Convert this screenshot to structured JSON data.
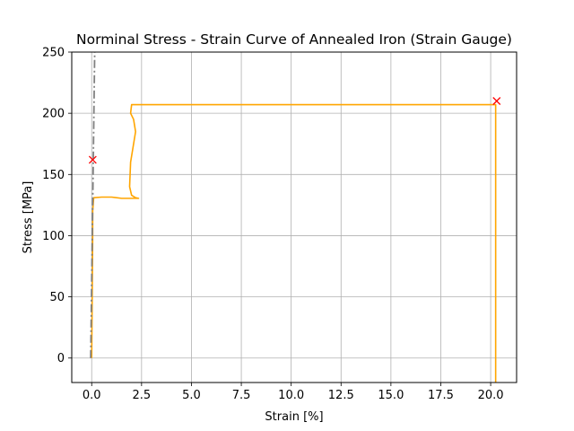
{
  "chart_data": {
    "type": "line",
    "title": "Norminal Stress - Strain Curve of Annealed Iron (Strain Gauge)",
    "xlabel": "Strain [%]",
    "ylabel": "Stress [MPa]",
    "xlim": [
      -1.0,
      21.3
    ],
    "ylim": [
      -20,
      250
    ],
    "xticks": [
      0,
      2.5,
      5,
      7.5,
      10,
      12.5,
      15,
      17.5,
      20
    ],
    "xtick_labels": [
      "0.0",
      "2.5",
      "5.0",
      "7.5",
      "10.0",
      "12.5",
      "15.0",
      "17.5",
      "20.0"
    ],
    "yticks": [
      0,
      50,
      100,
      150,
      200,
      250
    ],
    "ytick_labels": [
      "0",
      "50",
      "100",
      "150",
      "200",
      "250"
    ],
    "grid": true,
    "series": [
      {
        "color": "#ffa500",
        "style": "solid",
        "x": [
          0.0,
          0.01,
          0.02,
          0.03,
          0.04,
          0.05,
          0.05,
          0.1,
          0.5,
          1.0,
          1.5,
          2.0,
          2.35,
          2.2,
          2.0,
          1.9,
          1.95,
          2.1,
          2.2,
          2.1,
          1.95,
          2.0,
          2.5,
          5.0,
          10.0,
          15.0,
          20.0,
          20.25,
          20.25,
          20.25
        ],
        "y": [
          0,
          20,
          40,
          60,
          80,
          100,
          120,
          131,
          131.5,
          131.5,
          130.5,
          130.5,
          130.5,
          131,
          133,
          140,
          160,
          175,
          185,
          195,
          200,
          207,
          207,
          207,
          207,
          207,
          207,
          207,
          100,
          -20
        ]
      },
      {
        "color": "#808080",
        "style": "dashdot",
        "x": [
          -0.05,
          0.15
        ],
        "y": [
          0,
          250
        ]
      }
    ],
    "markers": [
      {
        "x": 0.05,
        "y": 162,
        "symbol": "x",
        "color": "#ff0000"
      },
      {
        "x": 20.3,
        "y": 210,
        "symbol": "x",
        "color": "#ff0000"
      }
    ]
  }
}
